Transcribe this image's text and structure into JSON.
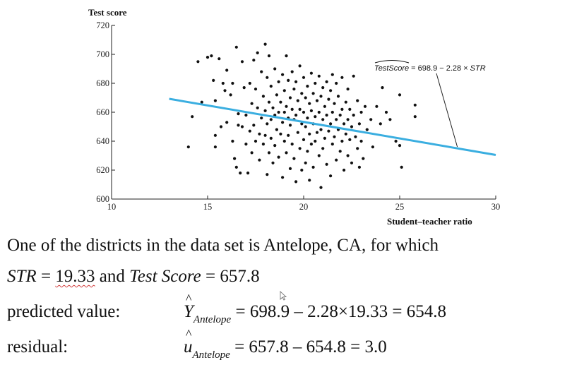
{
  "chart_data": {
    "type": "scatter",
    "title": "",
    "ylabel": "Test score",
    "xlabel": "Student–teacher ratio",
    "xlim": [
      10,
      30
    ],
    "ylim": [
      600,
      720
    ],
    "xticks": [
      "10",
      "15",
      "20",
      "25",
      "30"
    ],
    "yticks": [
      "600",
      "620",
      "640",
      "660",
      "680",
      "700",
      "720"
    ],
    "regression": {
      "label_lhs": "TestScore",
      "label_rhs": " = 698.9 − 2.28 × ",
      "label_var": "STR",
      "intercept": 698.9,
      "slope": -2.28,
      "x_range": [
        13,
        30
      ],
      "color": "#3aaee0"
    },
    "points": [
      [
        14.0,
        636
      ],
      [
        14.2,
        657
      ],
      [
        14.5,
        695
      ],
      [
        14.7,
        667
      ],
      [
        15.0,
        698
      ],
      [
        15.2,
        699
      ],
      [
        15.3,
        682
      ],
      [
        15.4,
        668
      ],
      [
        15.4,
        644
      ],
      [
        15.4,
        636
      ],
      [
        15.6,
        697
      ],
      [
        15.7,
        650
      ],
      [
        15.8,
        680
      ],
      [
        15.9,
        675
      ],
      [
        16.0,
        689
      ],
      [
        16.0,
        653
      ],
      [
        16.2,
        672
      ],
      [
        16.3,
        680
      ],
      [
        16.3,
        640
      ],
      [
        16.4,
        628
      ],
      [
        16.5,
        622
      ],
      [
        16.5,
        705
      ],
      [
        16.6,
        659
      ],
      [
        16.6,
        651
      ],
      [
        16.7,
        618
      ],
      [
        16.8,
        695
      ],
      [
        16.8,
        650
      ],
      [
        16.9,
        677
      ],
      [
        17.0,
        658
      ],
      [
        17.0,
        638
      ],
      [
        17.1,
        618
      ],
      [
        17.2,
        680
      ],
      [
        17.2,
        647
      ],
      [
        17.3,
        666
      ],
      [
        17.3,
        632
      ],
      [
        17.4,
        696
      ],
      [
        17.4,
        651
      ],
      [
        17.5,
        676
      ],
      [
        17.5,
        640
      ],
      [
        17.6,
        701
      ],
      [
        17.6,
        663
      ],
      [
        17.7,
        645
      ],
      [
        17.7,
        627
      ],
      [
        17.8,
        688
      ],
      [
        17.8,
        656
      ],
      [
        17.9,
        671
      ],
      [
        17.9,
        638
      ],
      [
        18.0,
        707
      ],
      [
        18.0,
        661
      ],
      [
        18.0,
        644
      ],
      [
        18.1,
        684
      ],
      [
        18.1,
        652
      ],
      [
        18.1,
        617
      ],
      [
        18.2,
        699
      ],
      [
        18.2,
        667
      ],
      [
        18.2,
        632
      ],
      [
        18.3,
        678
      ],
      [
        18.3,
        655
      ],
      [
        18.3,
        642
      ],
      [
        18.4,
        663
      ],
      [
        18.4,
        625
      ],
      [
        18.5,
        690
      ],
      [
        18.5,
        658
      ],
      [
        18.5,
        637
      ],
      [
        18.6,
        672
      ],
      [
        18.6,
        648
      ],
      [
        18.7,
        681
      ],
      [
        18.7,
        660
      ],
      [
        18.7,
        629
      ],
      [
        18.8,
        667
      ],
      [
        18.8,
        645
      ],
      [
        18.9,
        686
      ],
      [
        18.9,
        653
      ],
      [
        18.9,
        615
      ],
      [
        19.0,
        675
      ],
      [
        19.0,
        660
      ],
      [
        19.0,
        640
      ],
      [
        19.1,
        699
      ],
      [
        19.1,
        664
      ],
      [
        19.1,
        632
      ],
      [
        19.2,
        682
      ],
      [
        19.2,
        656
      ],
      [
        19.2,
        644
      ],
      [
        19.3,
        670
      ],
      [
        19.3,
        651
      ],
      [
        19.3,
        621
      ],
      [
        19.4,
        688
      ],
      [
        19.4,
        662
      ],
      [
        19.4,
        638
      ],
      [
        19.5,
        676
      ],
      [
        19.5,
        655
      ],
      [
        19.5,
        628
      ],
      [
        19.6,
        681
      ],
      [
        19.6,
        658
      ],
      [
        19.6,
        612
      ],
      [
        19.7,
        668
      ],
      [
        19.7,
        646
      ],
      [
        19.8,
        692
      ],
      [
        19.8,
        662
      ],
      [
        19.8,
        635
      ],
      [
        19.9,
        673
      ],
      [
        19.9,
        652
      ],
      [
        19.9,
        620
      ],
      [
        20.0,
        684
      ],
      [
        20.0,
        660
      ],
      [
        20.0,
        641
      ],
      [
        20.1,
        670
      ],
      [
        20.1,
        650
      ],
      [
        20.1,
        625
      ],
      [
        20.2,
        678
      ],
      [
        20.2,
        656
      ],
      [
        20.2,
        633
      ],
      [
        20.3,
        666
      ],
      [
        20.3,
        645
      ],
      [
        20.3,
        613
      ],
      [
        20.4,
        687
      ],
      [
        20.4,
        661
      ],
      [
        20.4,
        638
      ],
      [
        20.5,
        673
      ],
      [
        20.5,
        652
      ],
      [
        20.5,
        622
      ],
      [
        20.6,
        680
      ],
      [
        20.6,
        657
      ],
      [
        20.6,
        640
      ],
      [
        20.7,
        668
      ],
      [
        20.7,
        646
      ],
      [
        20.8,
        685
      ],
      [
        20.8,
        660
      ],
      [
        20.8,
        630
      ],
      [
        20.9,
        671
      ],
      [
        20.9,
        648
      ],
      [
        20.9,
        608
      ],
      [
        21.0,
        677
      ],
      [
        21.0,
        655
      ],
      [
        21.0,
        635
      ],
      [
        21.1,
        664
      ],
      [
        21.1,
        642
      ],
      [
        21.2,
        681
      ],
      [
        21.2,
        658
      ],
      [
        21.2,
        624
      ],
      [
        21.3,
        669
      ],
      [
        21.3,
        647
      ],
      [
        21.4,
        675
      ],
      [
        21.4,
        652
      ],
      [
        21.4,
        616
      ],
      [
        21.5,
        686
      ],
      [
        21.5,
        660
      ],
      [
        21.5,
        638
      ],
      [
        21.6,
        666
      ],
      [
        21.6,
        643
      ],
      [
        21.7,
        680
      ],
      [
        21.7,
        655
      ],
      [
        21.7,
        627
      ],
      [
        21.8,
        671
      ],
      [
        21.8,
        648
      ],
      [
        21.9,
        658
      ],
      [
        21.9,
        633
      ],
      [
        22.0,
        684
      ],
      [
        22.0,
        662
      ],
      [
        22.0,
        640
      ],
      [
        22.1,
        652
      ],
      [
        22.1,
        620
      ],
      [
        22.2,
        667
      ],
      [
        22.2,
        645
      ],
      [
        22.3,
        676
      ],
      [
        22.3,
        655
      ],
      [
        22.3,
        630
      ],
      [
        22.4,
        662
      ],
      [
        22.4,
        641
      ],
      [
        22.5,
        650
      ],
      [
        22.5,
        625
      ],
      [
        22.6,
        685
      ],
      [
        22.6,
        658
      ],
      [
        22.7,
        643
      ],
      [
        22.8,
        668
      ],
      [
        22.8,
        635
      ],
      [
        22.9,
        652
      ],
      [
        22.9,
        622
      ],
      [
        23.0,
        640
      ],
      [
        23.0,
        660
      ],
      [
        23.1,
        628
      ],
      [
        23.2,
        664
      ],
      [
        23.3,
        648
      ],
      [
        23.5,
        655
      ],
      [
        23.6,
        636
      ],
      [
        23.8,
        664
      ],
      [
        24.0,
        652
      ],
      [
        24.1,
        677
      ],
      [
        24.3,
        660
      ],
      [
        24.5,
        655
      ],
      [
        24.8,
        640
      ],
      [
        25.0,
        672
      ],
      [
        25.0,
        637
      ],
      [
        25.1,
        622
      ],
      [
        25.8,
        665
      ],
      [
        25.8,
        657
      ]
    ]
  },
  "text": {
    "line1": "One of the districts in the data set is Antelope, CA, for which",
    "line2_str": "STR",
    "line2_eq1": " = ",
    "line2_val1": "19.33",
    "line2_and": " and ",
    "line2_ts": "Test Score",
    "line2_eq2": " = 657.8",
    "line3_label": "predicted value:",
    "line3_y": "Y",
    "line3_sub": "Antelope",
    "line3_expr": " = 698.9 – 2.28×19.33 = 654.8",
    "line4_label": "residual:",
    "line4_u": "u",
    "line4_sub": "Antelope",
    "line4_expr": " = 657.8 – 654.8 = 3.0"
  }
}
